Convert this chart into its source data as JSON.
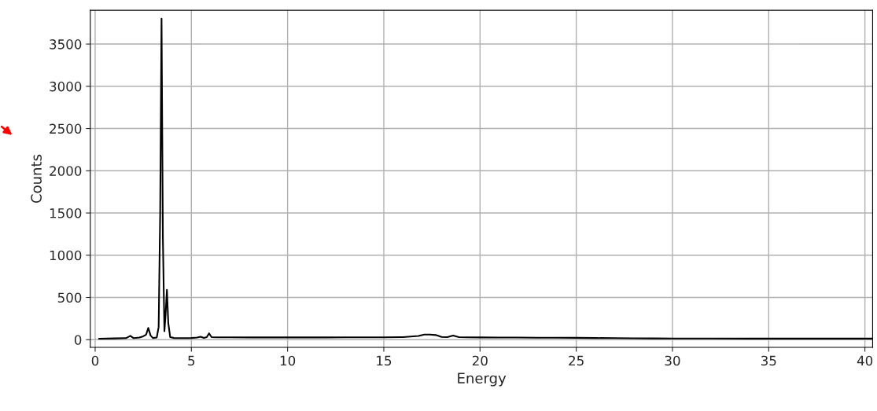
{
  "chart_data": {
    "type": "line",
    "xlabel": "Energy",
    "ylabel": "Counts",
    "xlim": [
      -0.25,
      40.4
    ],
    "ylim": [
      -90,
      3900
    ],
    "xticks": [
      0,
      5,
      10,
      15,
      20,
      25,
      30,
      35,
      40
    ],
    "yticks": [
      0,
      500,
      1000,
      1500,
      2000,
      2500,
      3000,
      3500
    ],
    "grid": true,
    "legend": false,
    "series": [
      {
        "color": "#000000",
        "x": [
          0.2,
          1.0,
          1.6,
          1.83,
          2.0,
          2.3,
          2.5,
          2.65,
          2.76,
          2.88,
          3.0,
          3.2,
          3.3,
          3.38,
          3.45,
          3.52,
          3.6,
          3.66,
          3.73,
          3.8,
          3.9,
          4.1,
          4.5,
          5.0,
          5.3,
          5.48,
          5.65,
          5.8,
          5.92,
          6.05,
          6.3,
          7,
          8,
          9,
          10,
          11,
          12,
          13,
          14,
          15,
          16,
          16.8,
          17.1,
          17.4,
          17.7,
          18.0,
          18.3,
          18.6,
          18.9,
          19.3,
          20,
          21,
          22,
          23,
          24,
          25,
          26,
          27,
          28,
          29,
          30,
          32,
          34,
          36,
          38,
          40.4
        ],
        "values": [
          12,
          15,
          18,
          45,
          18,
          25,
          40,
          60,
          140,
          50,
          20,
          25,
          150,
          1500,
          3800,
          1200,
          100,
          300,
          590,
          200,
          30,
          20,
          18,
          20,
          25,
          35,
          22,
          30,
          75,
          30,
          28,
          28,
          27,
          27,
          27,
          27,
          27,
          28,
          28,
          28,
          30,
          45,
          60,
          60,
          55,
          32,
          30,
          50,
          30,
          28,
          27,
          26,
          25,
          24,
          23,
          22,
          20,
          18,
          16,
          15,
          14,
          14,
          13,
          13,
          13,
          13
        ]
      }
    ]
  }
}
